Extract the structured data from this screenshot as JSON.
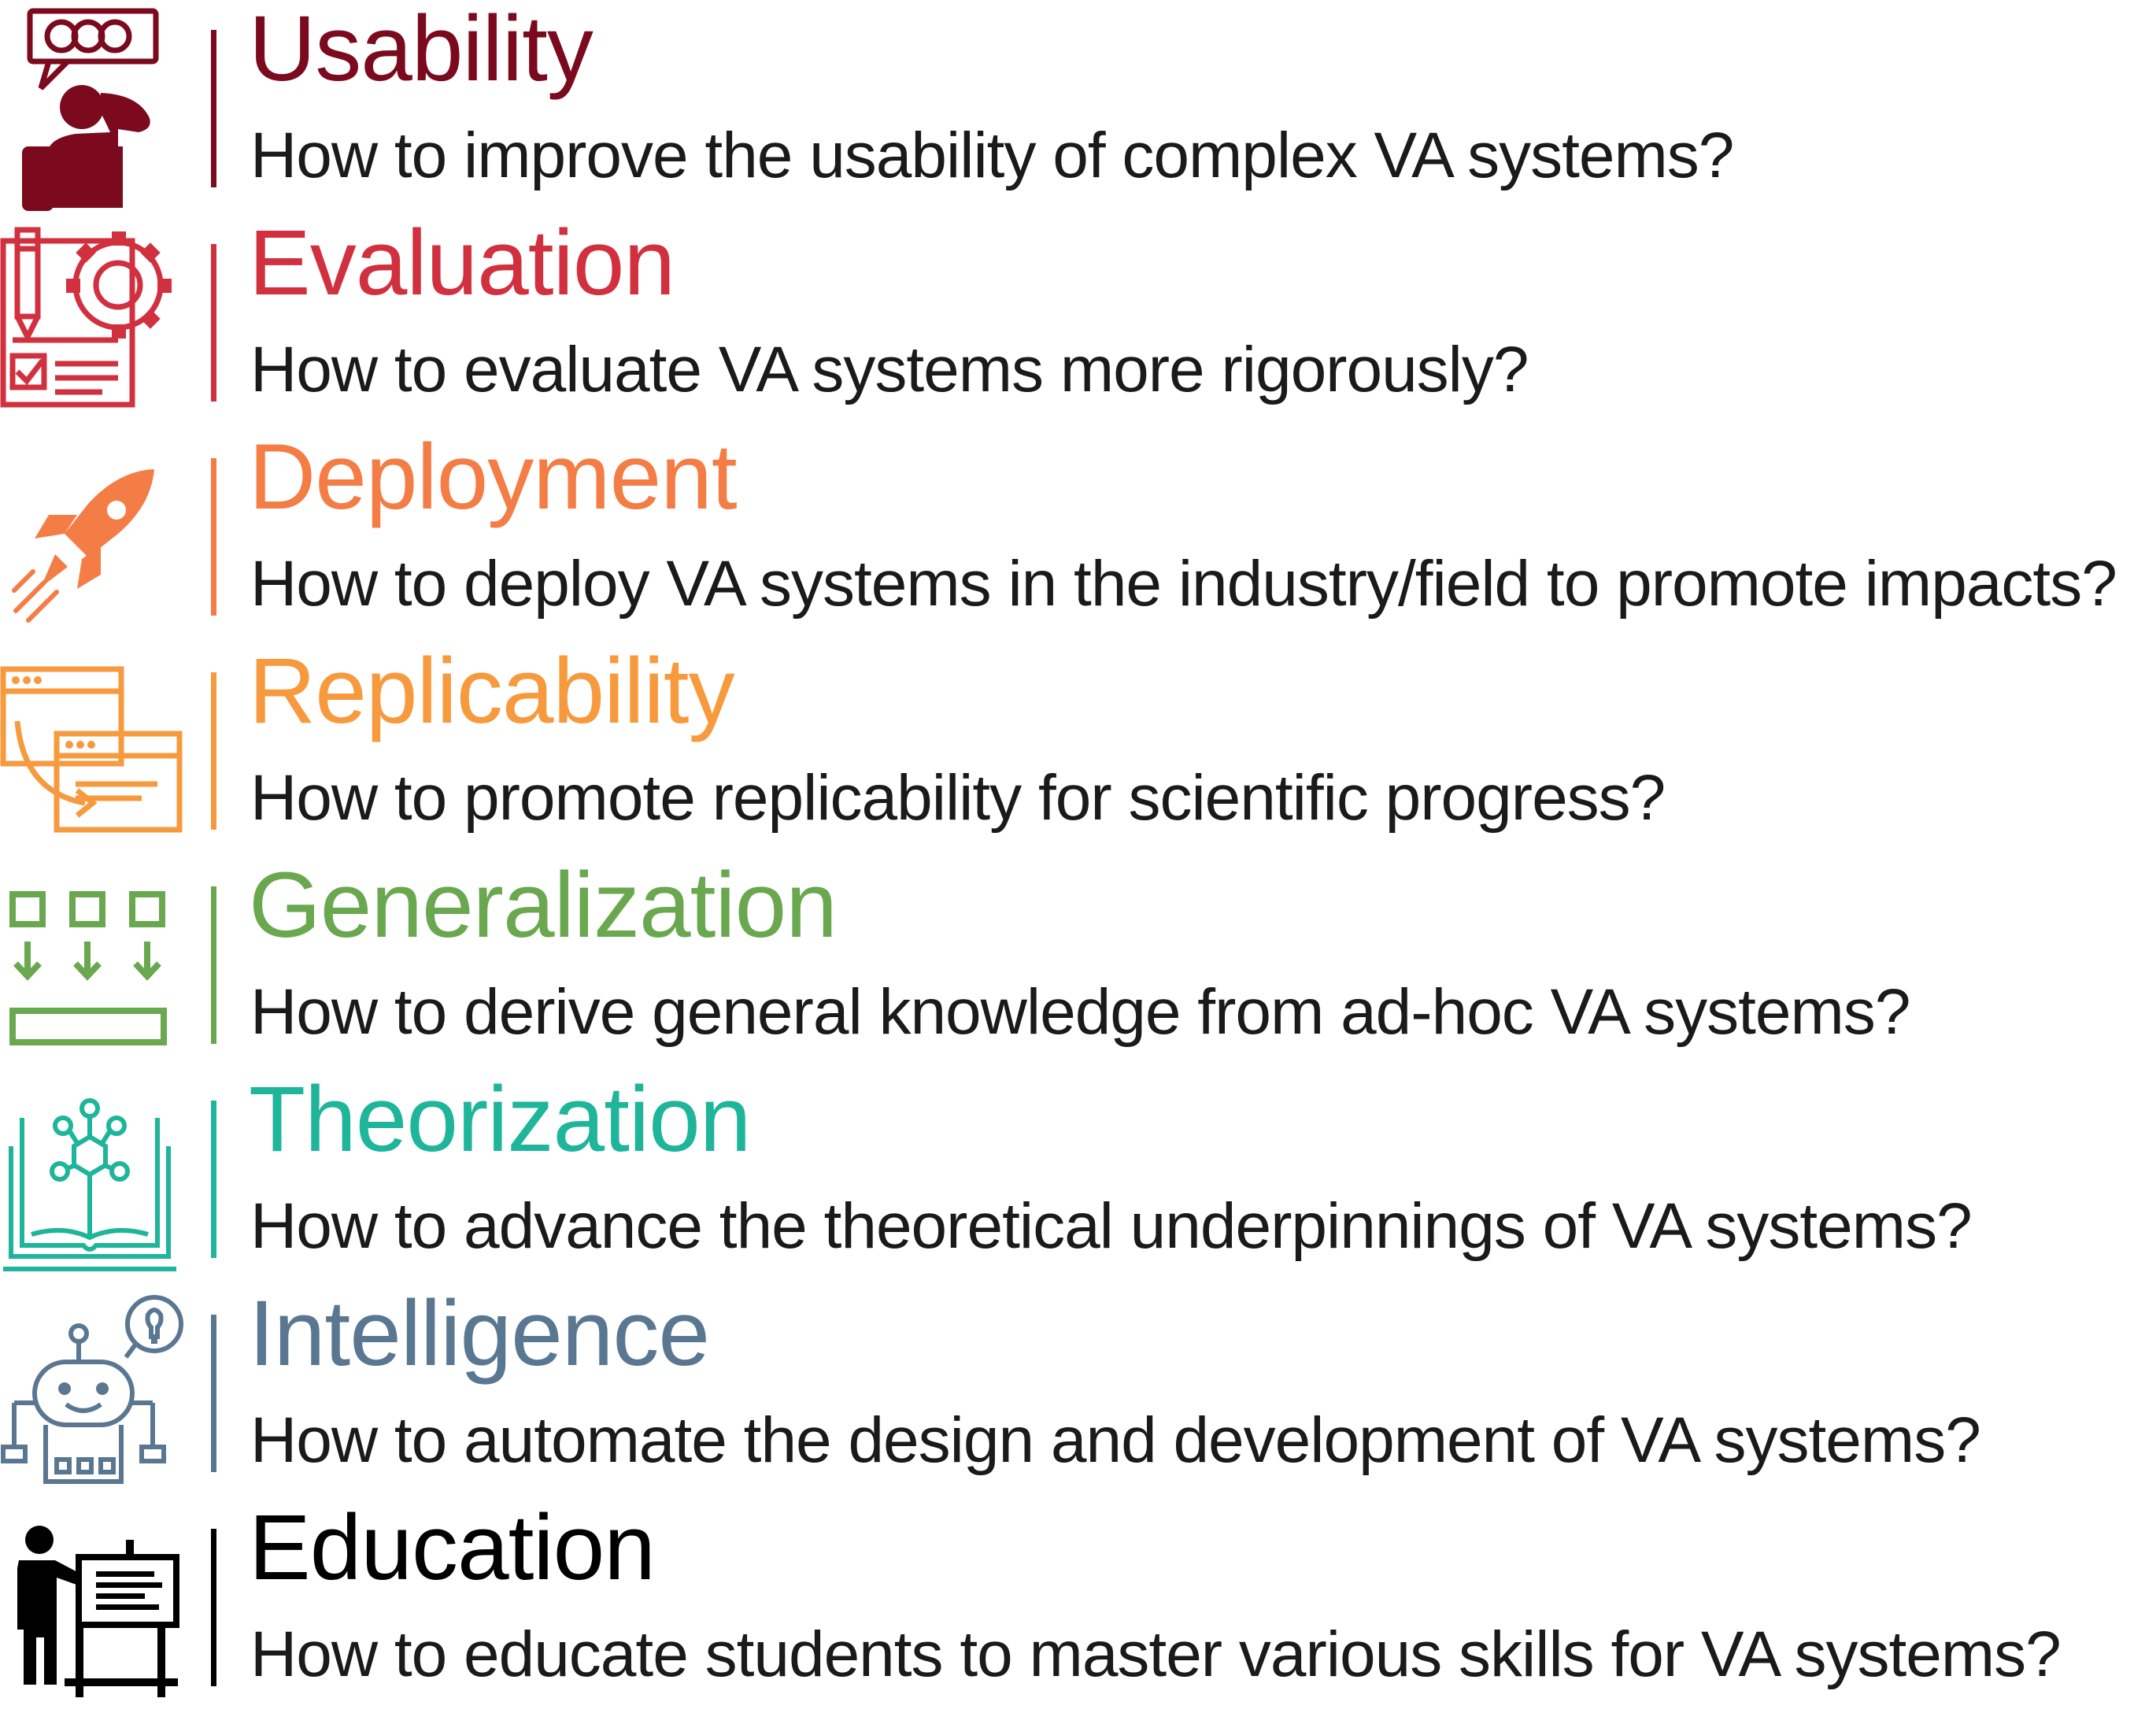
{
  "challenges": [
    {
      "key": "usability",
      "title": "Usability",
      "question": "How to improve the usability of complex VA systems?",
      "color": "#7b0a1e",
      "icon": "user-speech-bubble-icon"
    },
    {
      "key": "evaluation",
      "title": "Evaluation",
      "question": "How to evaluate VA systems more rigorously?",
      "color": "#d1303f",
      "icon": "checklist-gear-icon"
    },
    {
      "key": "deployment",
      "title": "Deployment",
      "question": "How to deploy VA systems in the industry/field to promote impacts?",
      "color": "#f47c45",
      "icon": "rocket-icon"
    },
    {
      "key": "replicability",
      "title": "Replicability",
      "question": "How to promote replicability for scientific progress?",
      "color": "#f79a3e",
      "icon": "copy-windows-icon"
    },
    {
      "key": "generalization",
      "title": "Generalization",
      "question": "How to derive general knowledge from ad-hoc VA systems?",
      "color": "#6aa84f",
      "icon": "boxes-merge-icon"
    },
    {
      "key": "theorization",
      "title": "Theorization",
      "question": "How to advance the theoretical underpinnings of VA systems?",
      "color": "#1fb59b",
      "icon": "book-molecule-icon"
    },
    {
      "key": "intelligence",
      "title": "Intelligence",
      "question": "How to automate the design and development of VA systems?",
      "color": "#5a7791",
      "icon": "robot-idea-icon"
    },
    {
      "key": "education",
      "title": "Education",
      "question": "How to educate students to master various skills for VA systems?",
      "color": "#000000",
      "icon": "teacher-board-icon"
    }
  ]
}
